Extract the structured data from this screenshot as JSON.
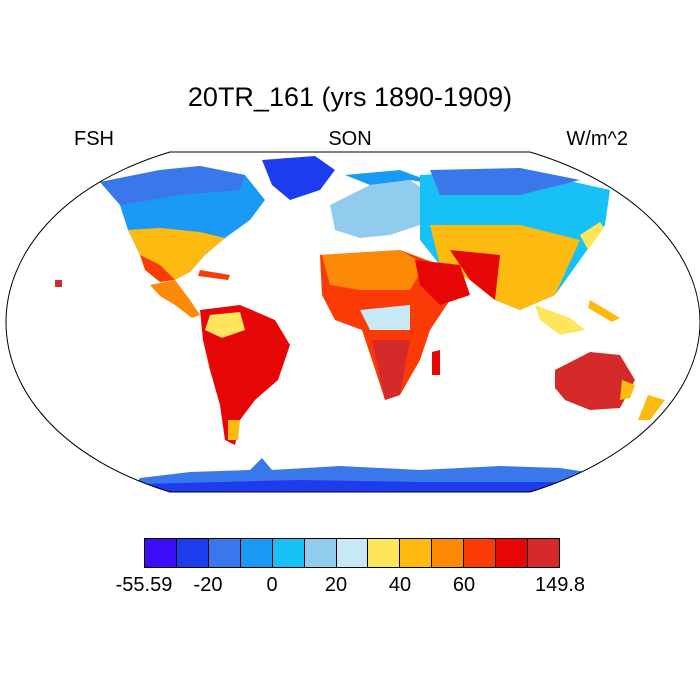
{
  "title": "20TR_161 (yrs 1890-1909)",
  "left_label": "FSH",
  "center_label": "SON",
  "right_label": "W/m^2",
  "colorbar": {
    "colors": [
      "#3b0ef5",
      "#1d3cee",
      "#3a77ea",
      "#1a99f5",
      "#18c1f5",
      "#91ccee",
      "#c9e8f6",
      "#fde65c",
      "#fdbb12",
      "#fd8a07",
      "#fb3b06",
      "#e60606",
      "#d42a2a"
    ],
    "labels": [
      {
        "text": "-55.59",
        "boundary": 0
      },
      {
        "text": "-20",
        "boundary": 2
      },
      {
        "text": "0",
        "boundary": 4
      },
      {
        "text": "20",
        "boundary": 6
      },
      {
        "text": "40",
        "boundary": 8
      },
      {
        "text": "60",
        "boundary": 10
      },
      {
        "text": "149.8",
        "boundary": 13
      }
    ]
  }
}
